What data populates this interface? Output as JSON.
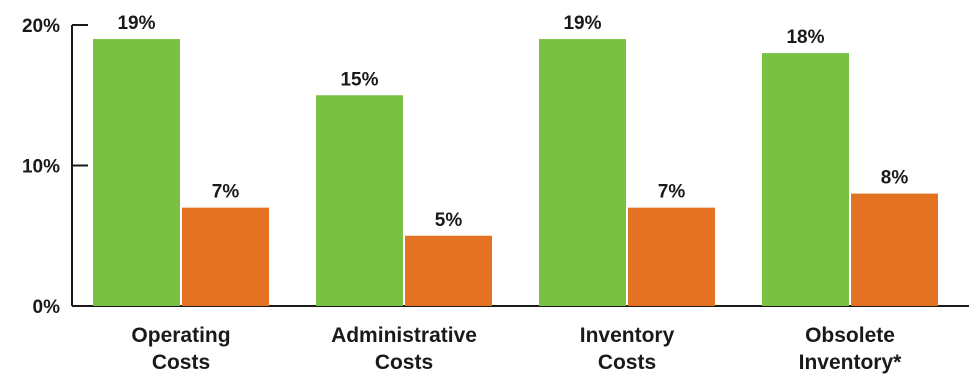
{
  "chart_data": {
    "type": "bar",
    "title": "",
    "xlabel": "",
    "ylabel": "",
    "categories": [
      [
        "Operating",
        "Costs"
      ],
      [
        "Administrative",
        "Costs"
      ],
      [
        "Inventory",
        "Costs"
      ],
      [
        "Obsolete",
        "Inventory*"
      ]
    ],
    "series": [
      {
        "values": [
          19,
          15,
          19,
          18
        ],
        "labels": [
          "19%",
          "15%",
          "19%",
          "18%"
        ],
        "color": "#7ac143"
      },
      {
        "values": [
          7,
          5,
          7,
          8
        ],
        "labels": [
          "7%",
          "5%",
          "7%",
          "8%"
        ],
        "color": "#e37222"
      }
    ],
    "ylim": [
      0,
      20
    ],
    "yticks": [
      {
        "value": 0,
        "label": "0%"
      },
      {
        "value": 10,
        "label": "10%"
      },
      {
        "value": 20,
        "label": "20%"
      }
    ],
    "grid": false,
    "legend": "none"
  }
}
